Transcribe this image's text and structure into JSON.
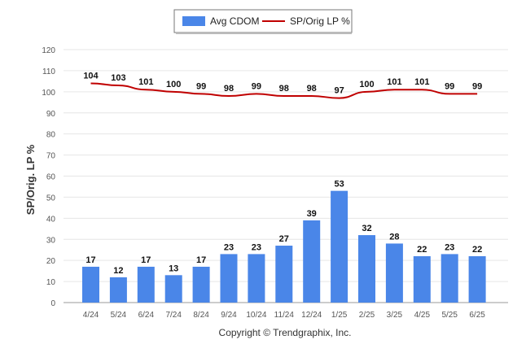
{
  "chart_data": {
    "type": "bar",
    "categories": [
      "4/24",
      "5/24",
      "6/24",
      "7/24",
      "8/24",
      "9/24",
      "10/24",
      "11/24",
      "12/24",
      "1/25",
      "2/25",
      "3/25",
      "4/25",
      "5/25",
      "6/25"
    ],
    "series": [
      {
        "name": "Avg CDOM",
        "type": "bar",
        "color": "#4a86e8",
        "values": [
          17,
          12,
          17,
          13,
          17,
          23,
          23,
          27,
          39,
          53,
          32,
          28,
          22,
          23,
          22
        ]
      },
      {
        "name": "SP/Orig LP %",
        "type": "line",
        "color": "#c00000",
        "values": [
          104,
          103,
          101,
          100,
          99,
          98,
          99,
          98,
          98,
          97,
          100,
          101,
          101,
          99,
          99
        ]
      }
    ],
    "ylabel": "SP/Orig. LP %",
    "ylim": [
      0,
      120
    ],
    "yticks": [
      0,
      10,
      20,
      30,
      40,
      50,
      60,
      70,
      80,
      90,
      100,
      110,
      120
    ],
    "grid": true,
    "legend_position": "top-center"
  },
  "footer": {
    "copyright": "Copyright © Trendgraphix, Inc."
  }
}
